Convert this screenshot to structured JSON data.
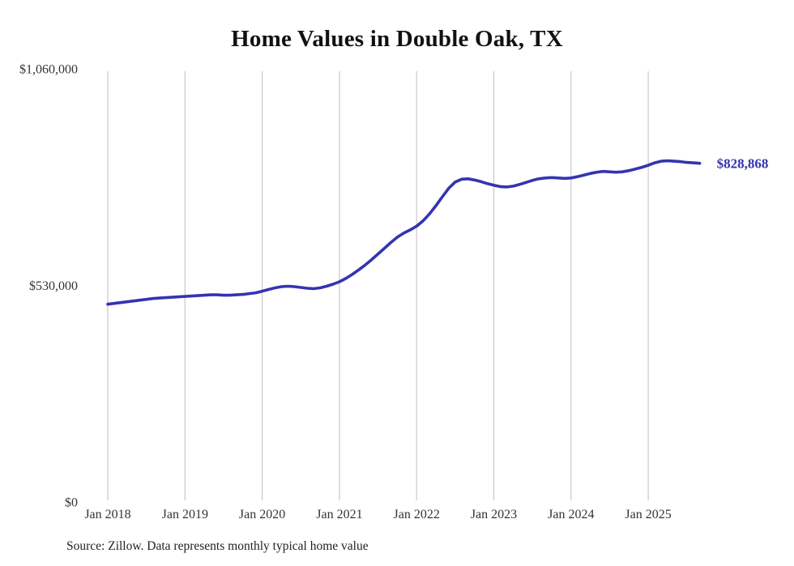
{
  "chart": {
    "title": "Home Values in Double Oak, TX",
    "source_note": "Source: Zillow. Data represents monthly typical home value",
    "end_label": "$828,868",
    "colors": {
      "line": "#3434b0",
      "grid": "#c9c9c9",
      "text": "#333333",
      "title": "#111111"
    }
  },
  "chart_data": {
    "type": "line",
    "title": "Home Values in Double Oak, TX",
    "xlabel": "",
    "ylabel": "",
    "x_start": "2018-01",
    "x_interval": "month",
    "x_tick_labels": [
      "Jan 2018",
      "Jan 2019",
      "Jan 2020",
      "Jan 2021",
      "Jan 2022",
      "Jan 2023",
      "Jan 2024",
      "Jan 2025"
    ],
    "y_ticks": [
      0,
      530000,
      1060000
    ],
    "y_tick_labels": [
      "$0",
      "$530,000",
      "$1,060,000"
    ],
    "ylim": [
      0,
      1060000
    ],
    "grid": "vertical-only",
    "legend": "none",
    "final_value": 828868,
    "series": [
      {
        "name": "Typical home value",
        "values": [
          484000,
          486000,
          488000,
          490000,
          492000,
          494000,
          496000,
          498000,
          499000,
          500000,
          501000,
          502000,
          503000,
          504000,
          505000,
          506000,
          507000,
          507000,
          506000,
          506000,
          507000,
          508000,
          510000,
          512000,
          516000,
          520000,
          524000,
          527000,
          528000,
          527000,
          525000,
          523000,
          522000,
          524000,
          528000,
          533000,
          539000,
          547000,
          557000,
          568000,
          580000,
          593000,
          607000,
          621000,
          635000,
          648000,
          658000,
          666000,
          675000,
          688000,
          705000,
          725000,
          747000,
          768000,
          783000,
          790000,
          791000,
          788000,
          784000,
          779000,
          775000,
          772000,
          771000,
          773000,
          777000,
          782000,
          787000,
          791000,
          793000,
          794000,
          793000,
          792000,
          793000,
          796000,
          800000,
          804000,
          807000,
          809000,
          808000,
          807000,
          808000,
          811000,
          815000,
          819000,
          824000,
          830000,
          834000,
          835000,
          834000,
          833000,
          831000,
          830000,
          828868
        ]
      }
    ]
  }
}
